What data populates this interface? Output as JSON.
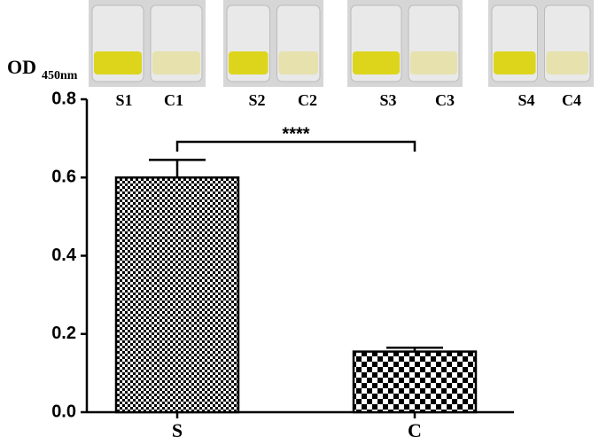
{
  "chart_data": {
    "type": "bar",
    "y_label": "OD",
    "y_label_sub": "450nm",
    "categories": [
      "S",
      "C"
    ],
    "values": [
      0.6,
      0.155
    ],
    "errors": [
      0.045,
      0.01
    ],
    "color": "#000000",
    "ylim": [
      0,
      0.8
    ],
    "yticks": [
      {
        "value": 0,
        "label": "0.0"
      },
      {
        "value": 0.2,
        "label": "0.2"
      },
      {
        "value": 0.4,
        "label": "0.4"
      },
      {
        "value": 0.6,
        "label": "0.6"
      },
      {
        "value": 0.8,
        "label": "0.8"
      }
    ],
    "annotation": "****",
    "photo_labels": [
      "S1",
      "C1",
      "S2",
      "C2",
      "S3",
      "C3",
      "S4",
      "C4"
    ]
  }
}
